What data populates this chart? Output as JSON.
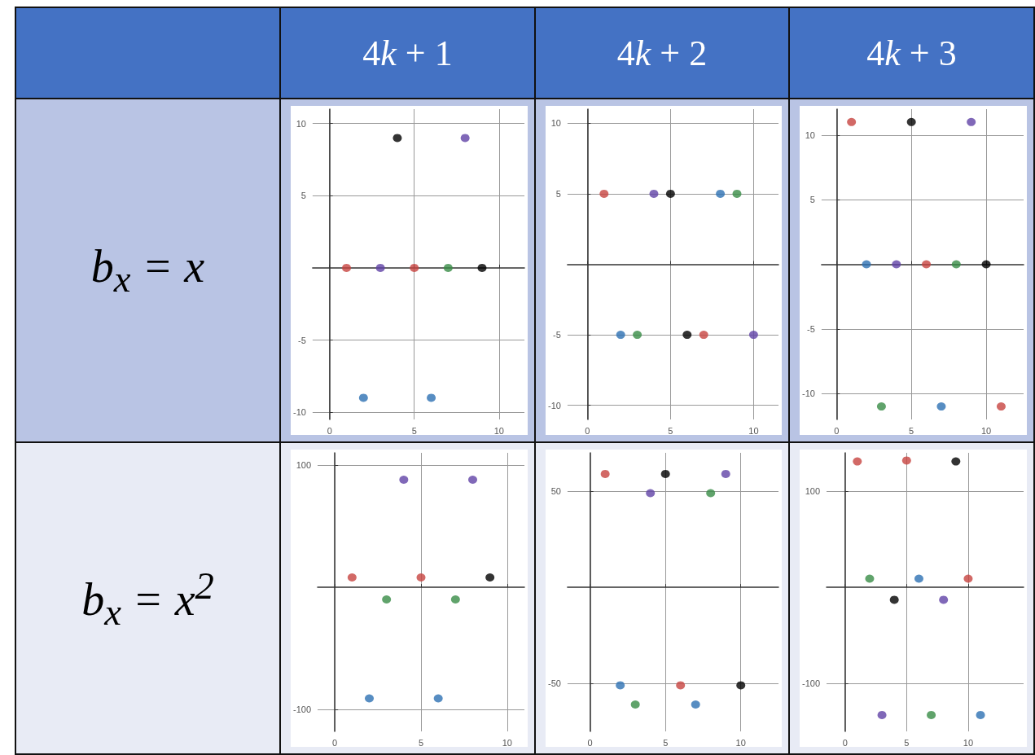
{
  "chart_data": [
    {
      "type": "scatter",
      "title": "4k + 1",
      "ylabel": "b$_{x}$ = x",
      "x": [
        1,
        2,
        3,
        4,
        5,
        6,
        7,
        8,
        9
      ],
      "values": [
        0,
        -9,
        0,
        9,
        0,
        -9,
        0,
        9,
        0
      ],
      "colors": [
        "#c74440",
        "#2d70b3",
        "#6042a6",
        "#000000",
        "#c74440",
        "#2d70b3",
        "#388c46",
        "#6042a6",
        "#000000"
      ],
      "xlim": [
        -1,
        11.5
      ],
      "ylim": [
        -10.5,
        11
      ],
      "xticks": [
        0,
        5,
        10
      ],
      "yticks": [
        -10,
        -5,
        5,
        10
      ],
      "grid": true,
      "marker": "circle"
    },
    {
      "type": "scatter",
      "title": "4k + 2",
      "x": [
        1,
        2,
        3,
        4,
        5,
        6,
        7,
        8,
        9,
        10
      ],
      "values": [
        5,
        -5,
        -5,
        5,
        5,
        -5,
        -5,
        5,
        5,
        -5
      ],
      "colors": [
        "#c74440",
        "#2d70b3",
        "#388c46",
        "#6042a6",
        "#000000",
        "#000000",
        "#c74440",
        "#2d70b3",
        "#388c46",
        "#6042a6"
      ],
      "xlim": [
        -1.2,
        11.5
      ],
      "ylim": [
        -11,
        11
      ],
      "xticks": [
        0,
        5,
        10
      ],
      "yticks": [
        -10,
        -5,
        5,
        10
      ],
      "grid": true,
      "marker": "circle"
    },
    {
      "type": "scatter",
      "title": "4k + 3",
      "x": [
        1,
        2,
        3,
        4,
        5,
        6,
        7,
        8,
        9,
        10,
        11
      ],
      "values": [
        11,
        0,
        -11,
        0,
        11,
        0,
        -11,
        0,
        11,
        0,
        -11
      ],
      "colors": [
        "#c74440",
        "#2d70b3",
        "#388c46",
        "#6042a6",
        "#000000",
        "#c74440",
        "#2d70b3",
        "#388c46",
        "#6042a6",
        "#000000",
        "#c74440"
      ],
      "xlim": [
        -1,
        12.5
      ],
      "ylim": [
        -12,
        12
      ],
      "xticks": [
        0,
        5,
        10
      ],
      "yticks": [
        -10,
        -5,
        5,
        10
      ],
      "grid": true,
      "marker": "circle"
    },
    {
      "type": "scatter",
      "ylabel": "b$_{x}$ = x$^{2}$",
      "x": [
        1,
        2,
        3,
        4,
        5,
        6,
        7,
        8,
        9
      ],
      "values": [
        8,
        -91,
        -10,
        88,
        8,
        -91,
        -10,
        88,
        8
      ],
      "colors": [
        "#c74440",
        "#2d70b3",
        "#388c46",
        "#6042a6",
        "#c74440",
        "#2d70b3",
        "#388c46",
        "#6042a6",
        "#000000"
      ],
      "xlim": [
        -1,
        11
      ],
      "ylim": [
        -118,
        110
      ],
      "xticks": [
        0,
        5,
        10
      ],
      "yticks": [
        -100,
        100
      ],
      "grid": true,
      "marker": "circle"
    },
    {
      "type": "scatter",
      "x": [
        1,
        2,
        3,
        4,
        5,
        6,
        7,
        8,
        9,
        10
      ],
      "values": [
        59,
        -51,
        -61,
        49,
        59,
        -51,
        -61,
        49,
        59,
        -51
      ],
      "colors": [
        "#c74440",
        "#2d70b3",
        "#388c46",
        "#6042a6",
        "#000000",
        "#c74440",
        "#2d70b3",
        "#388c46",
        "#6042a6",
        "#000000"
      ],
      "xlim": [
        -1.5,
        12.5
      ],
      "ylim": [
        -75,
        70
      ],
      "xticks": [
        0,
        5,
        10
      ],
      "yticks": [
        -50,
        50
      ],
      "grid": true,
      "marker": "circle"
    },
    {
      "type": "scatter",
      "x": [
        1,
        2,
        3,
        4,
        5,
        6,
        7,
        8,
        9,
        10,
        11
      ],
      "values": [
        131,
        9,
        -133,
        -13,
        132,
        9,
        -133,
        -13,
        131,
        9,
        -133
      ],
      "colors": [
        "#c74440",
        "#388c46",
        "#6042a6",
        "#000000",
        "#c74440",
        "#2d70b3",
        "#388c46",
        "#6042a6",
        "#000000",
        "#c74440",
        "#2d70b3"
      ],
      "xlim": [
        -1.5,
        14.5
      ],
      "ylim": [
        -150,
        140
      ],
      "xticks": [
        0,
        5,
        10
      ],
      "yticks": [
        -100,
        100
      ],
      "grid": true,
      "marker": "circle"
    }
  ]
}
